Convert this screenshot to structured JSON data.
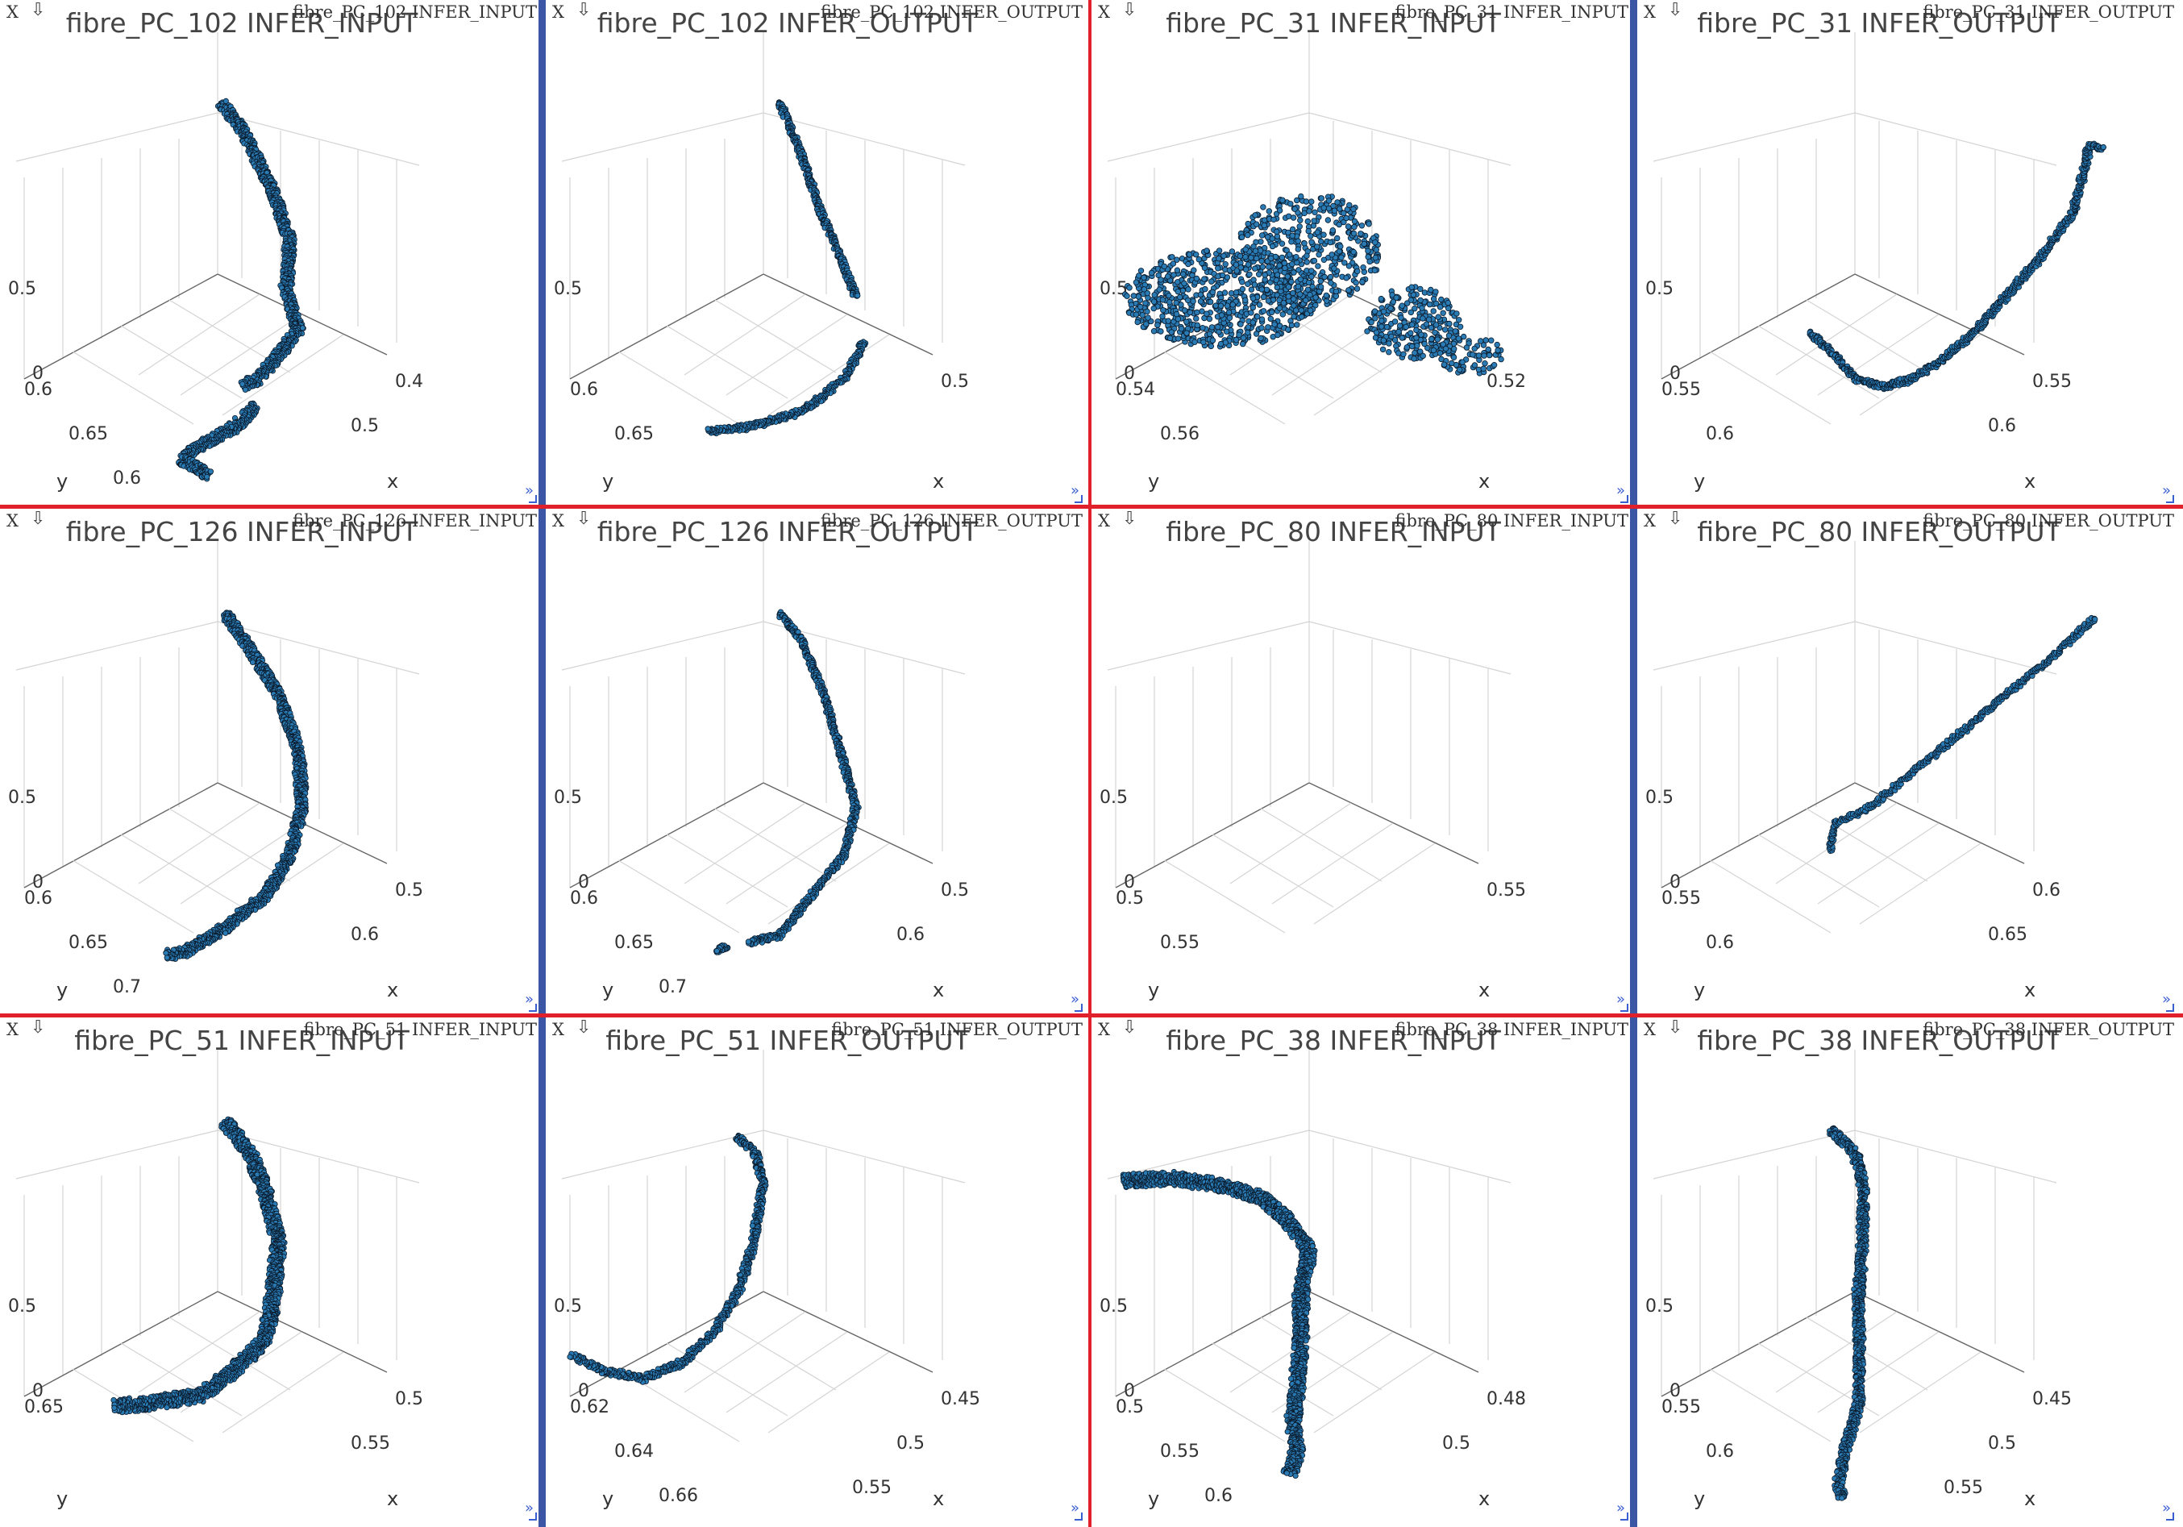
{
  "colors": {
    "blue_divider": "#3a56a4",
    "red_divider": "#e0202a",
    "point_fill": "#2a7ab4",
    "point_stroke": "#0a1a2a"
  },
  "ui": {
    "close_label": "X",
    "menu_arrow": "⇩",
    "more_label": "»"
  },
  "panels": [
    {
      "window_title": "fibre_PC_102 INFER_INPUT",
      "plot_title": "fibre_PC_102  INFER_INPUT",
      "z_ticks": [
        "0.5",
        "0"
      ],
      "y_ticks": [
        "0.6",
        "0.65",
        "0.6"
      ],
      "x_ticks": [
        "0.4",
        "0.5"
      ],
      "ylabel": "y",
      "xlabel": "x",
      "shape": "curve_gap",
      "thick": 13
    },
    {
      "window_title": "fibre_PC_102 INFER_OUTPUT",
      "plot_title": "fibre_PC_102  INFER_OUTPUT",
      "z_ticks": [
        "0.5"
      ],
      "y_ticks": [
        "0.6",
        "0.65"
      ],
      "x_ticks": [
        "0.5"
      ],
      "ylabel": "y",
      "xlabel": "x",
      "shape": "curve_gap_thin",
      "thick": 7
    },
    {
      "window_title": "fibre_PC_31 INFER_INPUT",
      "plot_title": "fibre_PC_31  INFER_INPUT",
      "z_ticks": [
        "0.5",
        "0"
      ],
      "y_ticks": [
        "0.54",
        "0.56"
      ],
      "x_ticks": [
        "0.52"
      ],
      "ylabel": "y",
      "xlabel": "x",
      "shape": "blob",
      "thick": 0
    },
    {
      "window_title": "fibre_PC_31 INFER_OUTPUT",
      "plot_title": "fibre_PC_31  INFER_OUTPUT",
      "z_ticks": [
        "0.5",
        "0"
      ],
      "y_ticks": [
        "0.55",
        "0.6"
      ],
      "x_ticks": [
        "0.55",
        "0.6"
      ],
      "ylabel": "y",
      "xlabel": "x",
      "shape": "hook_up",
      "thick": 7
    },
    {
      "window_title": "fibre_PC_126 INFER_INPUT",
      "plot_title": "fibre_PC_126  INFER_INPUT",
      "z_ticks": [
        "0.5",
        "0"
      ],
      "y_ticks": [
        "0.6",
        "0.65",
        "0.7"
      ],
      "x_ticks": [
        "0.5",
        "0.6"
      ],
      "ylabel": "y",
      "xlabel": "x",
      "shape": "curve_long",
      "thick": 12
    },
    {
      "window_title": "fibre_PC_126 INFER_OUTPUT",
      "plot_title": "fibre_PC_126  INFER_OUTPUT",
      "z_ticks": [
        "0.5",
        "0"
      ],
      "y_ticks": [
        "0.6",
        "0.65",
        "0.7"
      ],
      "x_ticks": [
        "0.5",
        "0.6"
      ],
      "ylabel": "y",
      "xlabel": "x",
      "shape": "curve_long_thin",
      "thick": 7
    },
    {
      "window_title": "fibre_PC_80 INFER_INPUT",
      "plot_title": "fibre_PC_80  INFER_INPUT",
      "z_ticks": [
        "0.5",
        "0"
      ],
      "y_ticks": [
        "0.5",
        "0.55"
      ],
      "x_ticks": [
        "0.55"
      ],
      "ylabel": "y",
      "xlabel": "x",
      "shape": "small_blob",
      "thick": 0
    },
    {
      "window_title": "fibre_PC_80 INFER_OUTPUT",
      "plot_title": "fibre_PC_80  INFER_OUTPUT",
      "z_ticks": [
        "0.5",
        "0"
      ],
      "y_ticks": [
        "0.55",
        "0.6"
      ],
      "x_ticks": [
        "0.6",
        "0.65"
      ],
      "ylabel": "y",
      "xlabel": "x",
      "shape": "diag_line",
      "thick": 6
    },
    {
      "window_title": "fibre_PC_51 INFER_INPUT",
      "plot_title": "fibre_PC_51  INFER_INPUT",
      "z_ticks": [
        "0.5",
        "0"
      ],
      "y_ticks": [
        "0.65"
      ],
      "x_ticks": [
        "0.5",
        "0.55"
      ],
      "ylabel": "y",
      "xlabel": "x",
      "shape": "l_shape",
      "thick": 16
    },
    {
      "window_title": "fibre_PC_51 INFER_OUTPUT",
      "plot_title": "fibre_PC_51  INFER_OUTPUT",
      "z_ticks": [
        "0.5",
        "0"
      ],
      "y_ticks": [
        "0.62",
        "0.64",
        "0.66"
      ],
      "x_ticks": [
        "0.45",
        "0.5",
        "0.55"
      ],
      "ylabel": "y",
      "xlabel": "x",
      "shape": "l_shape_thin",
      "thick": 8
    },
    {
      "window_title": "fibre_PC_38 INFER_INPUT",
      "plot_title": "fibre_PC_38  INFER_INPUT",
      "z_ticks": [
        "0.5",
        "0"
      ],
      "y_ticks": [
        "0.5",
        "0.55",
        "0.6"
      ],
      "x_ticks": [
        "0.48",
        "0.5"
      ],
      "ylabel": "y",
      "xlabel": "x",
      "shape": "seven",
      "thick": 16
    },
    {
      "window_title": "fibre_PC_38 INFER_OUTPUT",
      "plot_title": "fibre_PC_38  INFER_OUTPUT",
      "z_ticks": [
        "0.5",
        "0"
      ],
      "y_ticks": [
        "0.55",
        "0.6"
      ],
      "x_ticks": [
        "0.45",
        "0.5",
        "0.55"
      ],
      "ylabel": "y",
      "xlabel": "x",
      "shape": "vertical",
      "thick": 11
    }
  ]
}
